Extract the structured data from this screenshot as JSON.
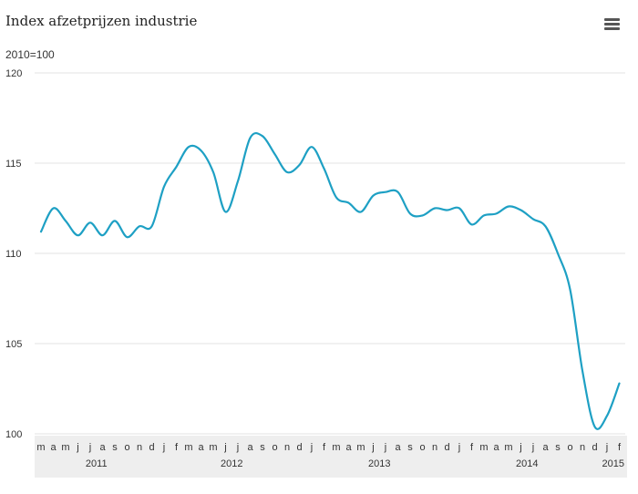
{
  "header": {
    "title": "Index afzetprijzen industrie",
    "subtitle": "2010=100",
    "menu_icon": "hamburger-menu-icon"
  },
  "colors": {
    "series_line": "#1ea0c4",
    "gridline": "#e3e3e3",
    "axis_band": "#eeeeee"
  },
  "chart_data": {
    "type": "line",
    "title": "Index afzetprijzen industrie",
    "subtitle": "2010=100",
    "xlabel": "",
    "ylabel": "",
    "ylim": [
      100,
      120
    ],
    "yticks": [
      100,
      105,
      110,
      115,
      120
    ],
    "grid": true,
    "legend": "none",
    "x": [
      "2011-03",
      "2011-04",
      "2011-05",
      "2011-06",
      "2011-07",
      "2011-08",
      "2011-09",
      "2011-10",
      "2011-11",
      "2011-12",
      "2012-01",
      "2012-02",
      "2012-03",
      "2012-04",
      "2012-05",
      "2012-06",
      "2012-07",
      "2012-08",
      "2012-09",
      "2012-10",
      "2012-11",
      "2012-12",
      "2013-01",
      "2013-02",
      "2013-03",
      "2013-04",
      "2013-05",
      "2013-06",
      "2013-07",
      "2013-08",
      "2013-09",
      "2013-10",
      "2013-11",
      "2013-12",
      "2014-01",
      "2014-02",
      "2014-03",
      "2014-04",
      "2014-05",
      "2014-06",
      "2014-07",
      "2014-08",
      "2014-09",
      "2014-10",
      "2014-11",
      "2014-12",
      "2015-01",
      "2015-02"
    ],
    "month_labels": [
      "m",
      "a",
      "m",
      "j",
      "j",
      "a",
      "s",
      "o",
      "n",
      "d",
      "j",
      "f",
      "m",
      "a",
      "m",
      "j",
      "j",
      "a",
      "s",
      "o",
      "n",
      "d",
      "j",
      "f",
      "m",
      "a",
      "m",
      "j",
      "j",
      "a",
      "s",
      "o",
      "n",
      "d",
      "j",
      "f",
      "m",
      "a",
      "m",
      "j",
      "j",
      "a",
      "s",
      "o",
      "n",
      "d",
      "j",
      "f"
    ],
    "year_labels": [
      {
        "label": "2011",
        "month_index": 4.5
      },
      {
        "label": "2012",
        "month_index": 15.5
      },
      {
        "label": "2013",
        "month_index": 27.5
      },
      {
        "label": "2014",
        "month_index": 39.5
      },
      {
        "label": "2015",
        "month_index": 46.5
      }
    ],
    "series": [
      {
        "values": [
          111.2,
          112.5,
          111.8,
          111.0,
          111.7,
          111.0,
          111.8,
          110.9,
          111.5,
          111.5,
          113.7,
          114.8,
          115.9,
          115.7,
          114.5,
          112.3,
          114.0,
          116.4,
          116.5,
          115.5,
          114.5,
          114.9,
          115.9,
          114.7,
          113.1,
          112.8,
          112.3,
          113.2,
          113.4,
          113.4,
          112.2,
          112.1,
          112.5,
          112.4,
          112.5,
          111.6,
          112.1,
          112.2,
          112.6,
          112.4,
          111.9,
          111.5,
          110.0,
          108.0,
          103.5,
          100.4,
          101.0,
          102.8
        ]
      }
    ]
  }
}
